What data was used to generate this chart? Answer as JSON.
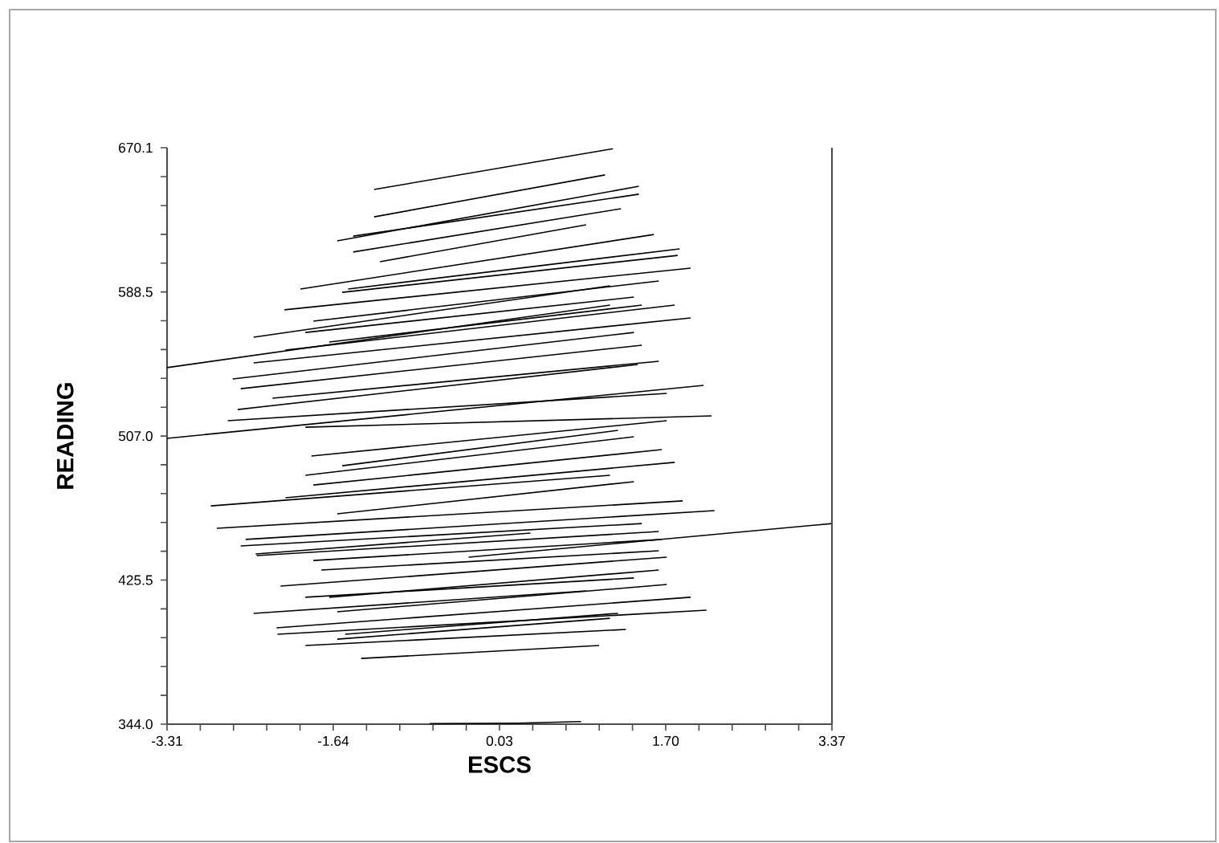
{
  "chart_data": {
    "type": "line",
    "xlabel": "ESCS",
    "ylabel": "READING",
    "color": "#000000",
    "line_style": "solid",
    "xlim": [
      -3.31,
      3.37
    ],
    "ylim": [
      344.0,
      670.1
    ],
    "xticks": [
      -3.31,
      {
        "value": -2.976,
        "label": null
      },
      {
        "value": -2.642,
        "label": null
      },
      {
        "value": -2.308,
        "label": null
      },
      {
        "value": -1.974,
        "label": null
      },
      -1.64,
      {
        "value": -1.306,
        "label": null
      },
      {
        "value": -0.972,
        "label": null
      },
      {
        "value": -0.638,
        "label": null
      },
      {
        "value": -0.304,
        "label": null
      },
      0.03,
      {
        "value": 0.364,
        "label": null
      },
      {
        "value": 0.698,
        "label": null
      },
      {
        "value": 1.032,
        "label": null
      },
      {
        "value": 1.366,
        "label": null
      },
      {
        "value": 1.7,
        "label": "1.70"
      },
      {
        "value": 2.034,
        "label": null
      },
      {
        "value": 2.368,
        "label": null
      },
      {
        "value": 2.702,
        "label": null
      },
      {
        "value": 3.036,
        "label": null
      },
      3.37
    ],
    "yticks": [
      {
        "value": 344.0,
        "label": "344.0"
      },
      {
        "value": 360.31,
        "label": null
      },
      {
        "value": 376.62,
        "label": null
      },
      {
        "value": 392.93,
        "label": null
      },
      {
        "value": 409.24,
        "label": null
      },
      425.5,
      {
        "value": 441.81,
        "label": null
      },
      {
        "value": 458.12,
        "label": null
      },
      {
        "value": 474.43,
        "label": null
      },
      {
        "value": 490.74,
        "label": null
      },
      {
        "value": 507.0,
        "label": "507.0"
      },
      {
        "value": 523.31,
        "label": null
      },
      {
        "value": 539.62,
        "label": null
      },
      {
        "value": 555.93,
        "label": null
      },
      {
        "value": 572.24,
        "label": null
      },
      588.5,
      {
        "value": 604.81,
        "label": null
      },
      {
        "value": 621.12,
        "label": null
      },
      {
        "value": 637.43,
        "label": null
      },
      {
        "value": 653.74,
        "label": null
      },
      670.1
    ],
    "series": [
      {
        "x": [
          -1.23,
          1.17
        ],
        "values": [
          646.5,
          669.5
        ]
      },
      {
        "x": [
          -1.23,
          1.09
        ],
        "values": [
          631.0,
          654.7
        ]
      },
      {
        "x": [
          -1.6,
          1.43
        ],
        "values": [
          617.4,
          648.3
        ]
      },
      {
        "x": [
          -1.44,
          1.43
        ],
        "values": [
          620.1,
          643.8
        ]
      },
      {
        "x": [
          -1.44,
          1.25
        ],
        "values": [
          611.1,
          635.6
        ]
      },
      {
        "x": [
          -1.17,
          0.9
        ],
        "values": [
          605.6,
          626.5
        ]
      },
      {
        "x": [
          -1.97,
          1.58
        ],
        "values": [
          590.2,
          621.0
        ]
      },
      {
        "x": [
          -1.49,
          1.84
        ],
        "values": [
          590.2,
          612.9
        ]
      },
      {
        "x": [
          -1.55,
          1.82
        ],
        "values": [
          588.3,
          609.2
        ]
      },
      {
        "x": [
          -2.13,
          1.95
        ],
        "values": [
          578.4,
          602.0
        ]
      },
      {
        "x": [
          -1.84,
          1.63
        ],
        "values": [
          572.0,
          594.7
        ]
      },
      {
        "x": [
          -1.92,
          1.38
        ],
        "values": [
          565.6,
          585.6
        ]
      },
      {
        "x": [
          -1.68,
          1.46
        ],
        "values": [
          560.2,
          581.1
        ]
      },
      {
        "x": [
          -2.12,
          1.79
        ],
        "values": [
          555.6,
          581.1
        ]
      },
      {
        "x": [
          -2.44,
          1.14
        ],
        "values": [
          562.9,
          592.0
        ]
      },
      {
        "x": [
          -3.31,
          1.14
        ],
        "values": [
          545.7,
          581.1
        ]
      },
      {
        "x": [
          -2.44,
          1.95
        ],
        "values": [
          548.4,
          573.8
        ]
      },
      {
        "x": [
          -2.65,
          1.38
        ],
        "values": [
          539.3,
          565.6
        ]
      },
      {
        "x": [
          -2.57,
          1.46
        ],
        "values": [
          533.8,
          558.4
        ]
      },
      {
        "x": [
          -2.6,
          1.42
        ],
        "values": [
          522.0,
          547.5
        ]
      },
      {
        "x": [
          -2.25,
          1.63
        ],
        "values": [
          528.4,
          549.3
        ]
      },
      {
        "x": [
          -3.31,
          2.08
        ],
        "values": [
          505.7,
          535.7
        ]
      },
      {
        "x": [
          -2.7,
          1.71
        ],
        "values": [
          515.7,
          531.1
        ]
      },
      {
        "x": [
          -1.92,
          2.16
        ],
        "values": [
          512.0,
          518.4
        ]
      },
      {
        "x": [
          -1.86,
          1.71
        ],
        "values": [
          495.7,
          515.7
        ]
      },
      {
        "x": [
          -1.55,
          1.22
        ],
        "values": [
          490.2,
          510.2
        ]
      },
      {
        "x": [
          -1.92,
          1.38
        ],
        "values": [
          484.8,
          506.6
        ]
      },
      {
        "x": [
          -1.84,
          1.66
        ],
        "values": [
          479.3,
          499.3
        ]
      },
      {
        "x": [
          -2.12,
          1.79
        ],
        "values": [
          472.1,
          492.1
        ]
      },
      {
        "x": [
          -2.87,
          1.14
        ],
        "values": [
          467.5,
          484.8
        ]
      },
      {
        "x": [
          -2.81,
          1.87
        ],
        "values": [
          454.8,
          470.3
        ]
      },
      {
        "x": [
          -1.6,
          1.38
        ],
        "values": [
          463.0,
          481.2
        ]
      },
      {
        "x": [
          -2.52,
          2.19
        ],
        "values": [
          448.5,
          464.8
        ]
      },
      {
        "x": [
          -2.57,
          1.46
        ],
        "values": [
          444.8,
          457.5
        ]
      },
      {
        "x": [
          -2.41,
          1.63
        ],
        "values": [
          439.4,
          453.0
        ]
      },
      {
        "x": [
          -1.84,
          1.66
        ],
        "values": [
          436.6,
          448.5
        ]
      },
      {
        "x": [
          -0.28,
          3.37
        ],
        "values": [
          438.5,
          457.5
        ]
      },
      {
        "x": [
          -2.42,
          0.34
        ],
        "values": [
          440.3,
          452.1
        ]
      },
      {
        "x": [
          -1.76,
          1.63
        ],
        "values": [
          431.2,
          442.1
        ]
      },
      {
        "x": [
          -2.17,
          1.71
        ],
        "values": [
          422.1,
          438.5
        ]
      },
      {
        "x": [
          -1.68,
          1.63
        ],
        "values": [
          415.8,
          431.2
        ]
      },
      {
        "x": [
          -1.92,
          1.38
        ],
        "values": [
          415.8,
          426.7
        ]
      },
      {
        "x": [
          -2.44,
          0.9
        ],
        "values": [
          406.7,
          419.4
        ]
      },
      {
        "x": [
          -2.21,
          1.95
        ],
        "values": [
          398.5,
          415.8
        ]
      },
      {
        "x": [
          -1.6,
          1.71
        ],
        "values": [
          407.6,
          423.0
        ]
      },
      {
        "x": [
          -2.2,
          2.11
        ],
        "values": [
          394.9,
          408.5
        ]
      },
      {
        "x": [
          -1.6,
          1.14
        ],
        "values": [
          392.1,
          403.9
        ]
      },
      {
        "x": [
          -1.92,
          1.3
        ],
        "values": [
          388.5,
          397.6
        ]
      },
      {
        "x": [
          -1.52,
          1.22
        ],
        "values": [
          394.9,
          406.7
        ]
      },
      {
        "x": [
          -1.36,
          1.03
        ],
        "values": [
          381.2,
          388.5
        ]
      },
      {
        "x": [
          -0.67,
          0.21,
          0.85
        ],
        "values": [
          344.3,
          344.6,
          345.5
        ]
      }
    ]
  }
}
